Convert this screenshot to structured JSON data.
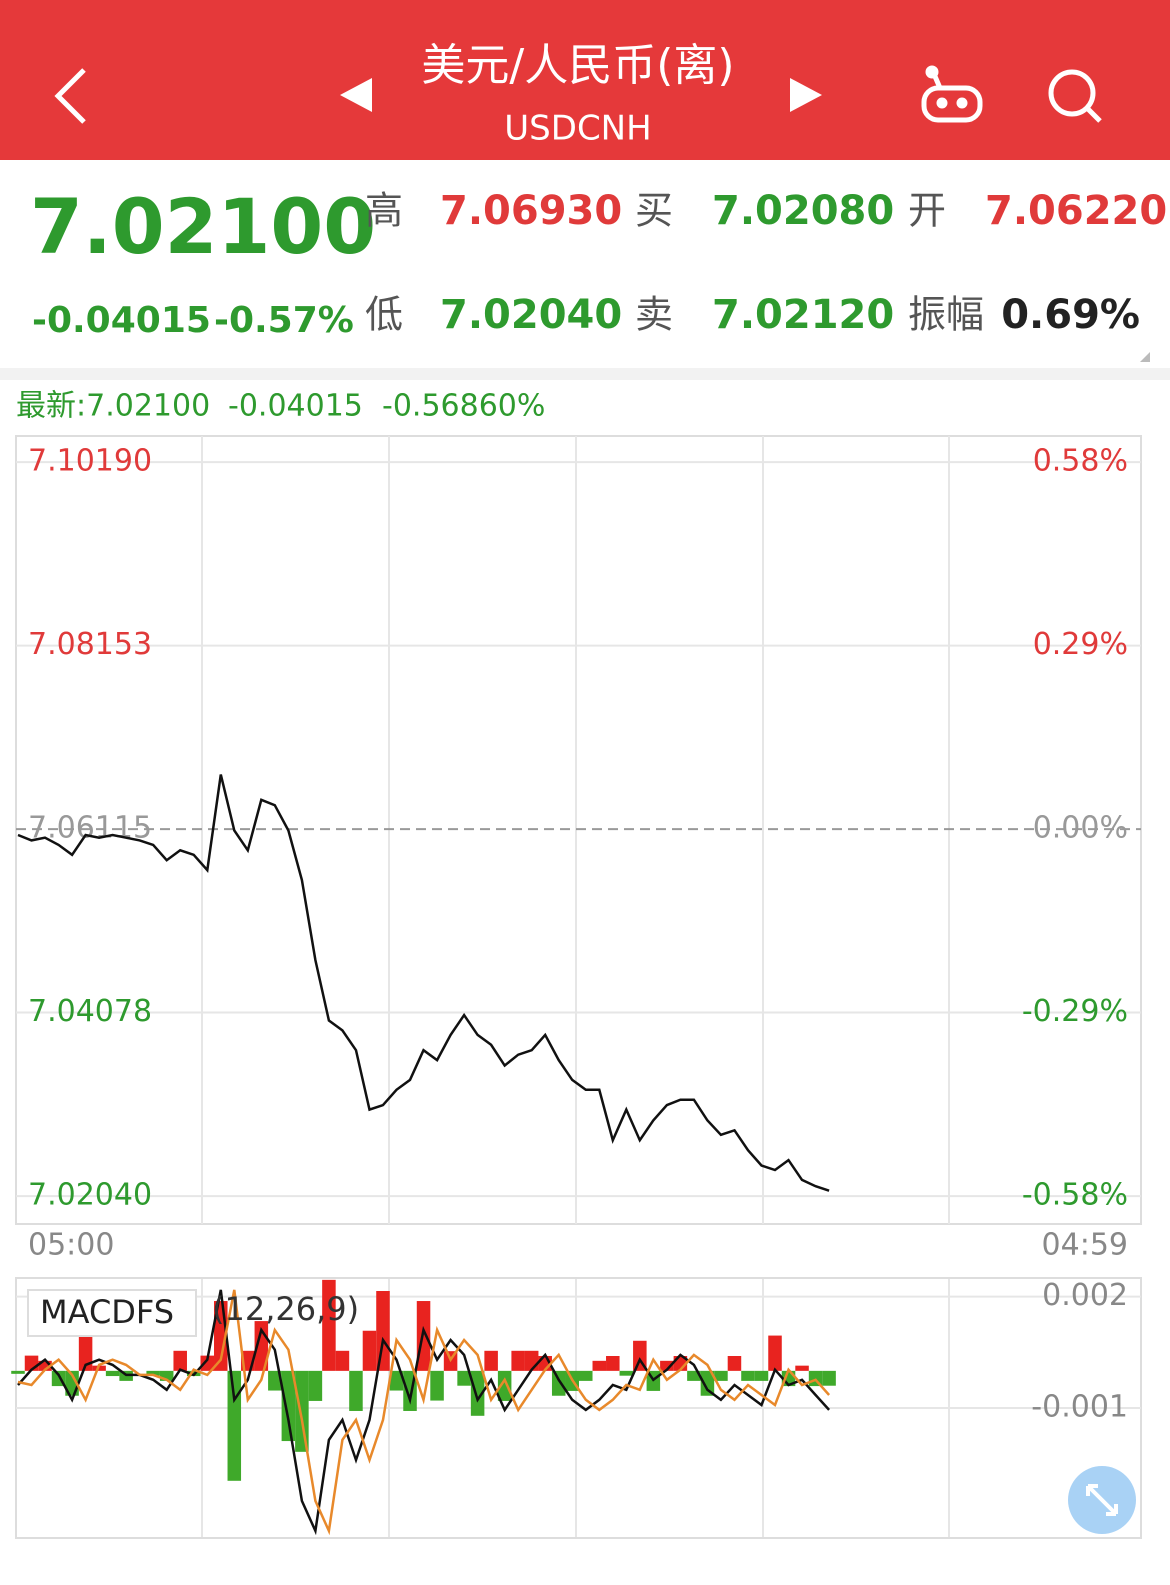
{
  "header": {
    "title": "美元/人民币(离)",
    "subtitle": "USDCNH"
  },
  "quote": {
    "price": "7.02100",
    "change": "-0.04015",
    "change_pct": "-0.57%",
    "high_label": "高",
    "high": "7.06930",
    "bid_label": "买",
    "bid": "7.02080",
    "open_label": "开",
    "open": "7.06220",
    "low_label": "低",
    "low": "7.02040",
    "ask_label": "卖",
    "ask": "7.02120",
    "amplitude_label": "振幅",
    "amplitude": "0.69%"
  },
  "latest": {
    "price": "最新:7.02100",
    "change": "-0.04015",
    "change_pct": "-0.56860%"
  },
  "chart_data": [
    {
      "type": "line",
      "categories": [
        "05:00",
        null,
        null,
        null,
        null,
        null,
        null,
        null,
        null,
        null,
        null,
        null,
        null,
        null,
        null,
        null,
        null,
        null,
        null,
        null,
        null,
        null,
        null,
        null,
        null,
        null,
        null,
        null,
        null,
        null,
        null,
        null,
        null,
        null,
        null,
        null,
        null,
        null,
        null,
        null,
        null,
        null,
        null,
        null,
        null,
        null,
        null,
        null,
        null,
        null,
        null,
        null,
        null,
        null,
        null,
        null,
        null,
        null,
        null,
        null,
        null,
        null,
        null,
        null,
        null,
        null,
        null,
        null,
        null,
        null,
        null,
        null,
        null,
        null,
        null,
        null,
        null,
        null,
        null,
        null,
        null,
        null,
        null,
        "04:59"
      ],
      "series": [
        {
          "color": "#111111",
          "values": [
            7.0605,
            7.0599,
            7.0602,
            7.0594,
            7.0583,
            7.0605,
            7.0602,
            7.0605,
            7.0602,
            7.0599,
            7.0594,
            7.0577,
            7.0588,
            7.0583,
            7.0566,
            7.0672,
            7.061,
            7.0588,
            7.0644,
            7.0638,
            7.061,
            7.0555,
            7.0466,
            7.0399,
            7.0388,
            7.0366,
            7.03,
            7.0305,
            7.0322,
            7.0333,
            7.0366,
            7.0355,
            7.0383,
            7.0405,
            7.0383,
            7.0372,
            7.0349,
            7.0361,
            7.0366,
            7.0383,
            7.0355,
            7.0333,
            7.0322,
            7.0322,
            7.0266,
            7.03,
            7.0266,
            7.0288,
            7.0305,
            7.0311,
            7.0311,
            7.0288,
            7.0272,
            7.0277,
            7.0255,
            7.0238,
            7.0233,
            7.0244,
            7.0222,
            7.0215,
            7.021,
            null,
            null,
            null,
            null,
            null,
            null,
            null,
            null,
            null,
            null,
            null,
            null,
            null,
            null,
            null,
            null,
            null,
            null,
            null,
            null,
            null,
            null,
            null
          ]
        }
      ],
      "ylim": [
        7.0173,
        7.1048
      ],
      "yticks": [
        {
          "value": 7.1019,
          "label": "7.10190"
        },
        {
          "value": 7.08153,
          "label": "7.08153"
        },
        {
          "value": 7.06115,
          "label": "7.06115"
        },
        {
          "value": 7.04078,
          "label": "7.04078"
        },
        {
          "value": 7.0204,
          "label": "7.02040"
        }
      ],
      "y2lim": [
        -0.624,
        0.621
      ],
      "y2ticks": [
        {
          "value": 0.58,
          "label": "0.58%"
        },
        {
          "value": 0.29,
          "label": "0.29%"
        },
        {
          "value": 0,
          "label": "0.00%"
        },
        {
          "value": -0.29,
          "label": "-0.29%"
        },
        {
          "value": -0.58,
          "label": "-0.58%"
        }
      ],
      "up_color": "#e03a3a",
      "down_color": "#2e9a2e",
      "grid": true
    },
    {
      "type": "macd",
      "title": "MACDFS",
      "params": "(12,26,9)",
      "series": [
        {
          "color": "#111111",
          "values": [
            -0.00038,
            3e-05,
            0.0003,
            -0.00011,
            -0.00078,
            0.00016,
            0.0003,
            0.00016,
            -0.00011,
            -0.00011,
            -0.00024,
            -0.00051,
            3e-05,
            -0.00011,
            0.0003,
            0.00218,
            -0.00078,
            -0.00024,
            0.0011,
            0.00057,
            -0.00132,
            -0.0035,
            -0.00431,
            -0.00186,
            -0.00132,
            -0.0024,
            -0.00132,
            0.00083,
            0.0003,
            -0.00078,
            0.0011,
            0.0003,
            0.00083,
            0.00043,
            -0.00078,
            -0.00024,
            -0.00105,
            -0.00051,
            3e-05,
            0.00043,
            -0.00024,
            -0.00078,
            -0.00105,
            -0.00078,
            -0.00038,
            -0.00051,
            0.0003,
            -0.00024,
            3e-05,
            0.00043,
            0.00016,
            -0.00051,
            -0.00078,
            -0.00038,
            -0.00065,
            -0.00092,
            3e-05,
            -0.00038,
            -0.00024,
            -0.00065,
            -0.00105
          ]
        },
        {
          "color": "#e8892b",
          "values": [
            -0.0003,
            -0.00038,
            3e-05,
            0.0003,
            -0.00011,
            -0.00078,
            0.00016,
            0.0003,
            0.00016,
            -0.00011,
            -0.00011,
            -0.00024,
            -0.00051,
            3e-05,
            -0.00011,
            0.0003,
            0.00218,
            -0.00078,
            -0.00024,
            0.0011,
            0.00057,
            -0.00132,
            -0.0035,
            -0.00431,
            -0.00186,
            -0.00132,
            -0.0024,
            -0.00132,
            0.00083,
            0.0003,
            -0.00078,
            0.0011,
            0.0003,
            0.00083,
            0.00043,
            -0.00078,
            -0.00024,
            -0.00105,
            -0.00051,
            3e-05,
            0.00043,
            -0.00024,
            -0.00078,
            -0.00105,
            -0.00078,
            -0.00038,
            -0.00051,
            0.0003,
            -0.00024,
            3e-05,
            0.00043,
            0.00016,
            -0.00051,
            -0.00078,
            -0.00038,
            -0.00065,
            -0.00092,
            3e-05,
            -0.00038,
            -0.00024,
            -0.00065
          ]
        }
      ],
      "histogram": {
        "up_color": "#e8231f",
        "down_color": "#3fa92a",
        "values": [
          -8e-05,
          0.00041,
          0.00027,
          -0.00041,
          -0.00067,
          0.00094,
          0.00014,
          -0.00014,
          -0.00027,
          0,
          -0.00013,
          -0.00027,
          0.00054,
          -0.00014,
          0.00041,
          0.00188,
          -0.00296,
          0.00054,
          0.00134,
          -0.00053,
          -0.00189,
          -0.00218,
          -0.00081,
          0.00245,
          0.00054,
          -0.00108,
          0.00108,
          0.00215,
          -0.00053,
          -0.00108,
          0.00188,
          -0.0008,
          0.00053,
          -0.0004,
          -0.00121,
          0.00054,
          -0.00081,
          0.00054,
          0.00054,
          0.0004,
          -0.00067,
          -0.00054,
          -0.00027,
          0.00027,
          0.0004,
          -0.00013,
          0.00081,
          -0.00054,
          0.00027,
          0.0004,
          -0.00027,
          -0.00067,
          -0.00027,
          0.0004,
          -0.00027,
          -0.00027,
          0.00095,
          -0.00041,
          0.00014,
          -0.00041,
          -0.0004
        ]
      },
      "ylim": [
        -0.0045,
        0.0025
      ],
      "yticks": [
        0.002,
        -0.001
      ],
      "grid": true
    }
  ]
}
